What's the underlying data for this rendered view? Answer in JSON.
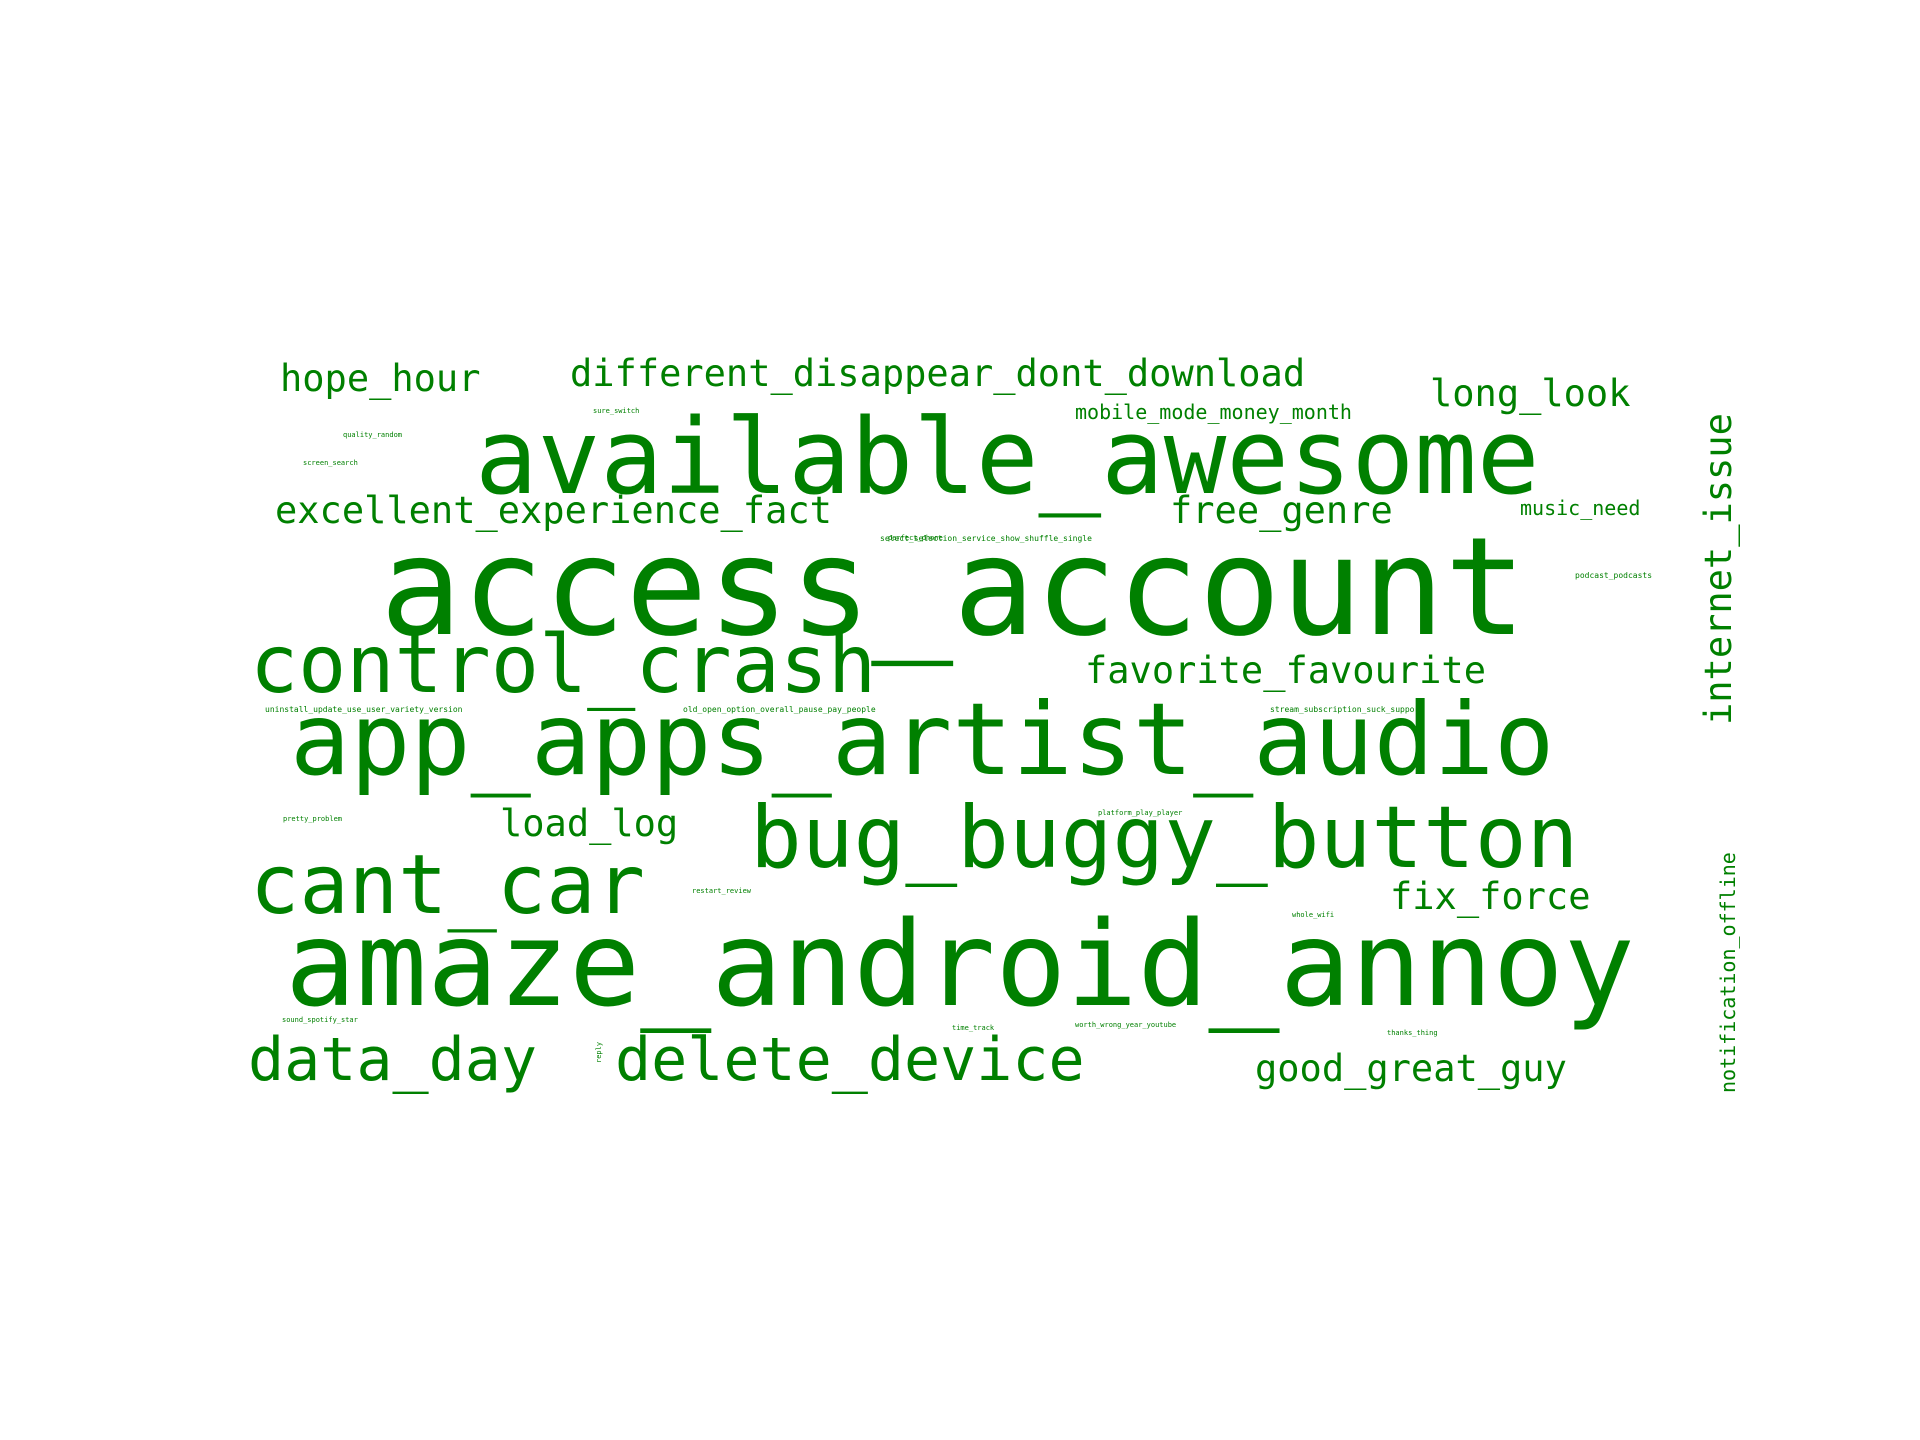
{
  "color": "#008000",
  "words": [
    "access_account",
    "available_awesome",
    "app_apps_artist_audio",
    "amaze_android_annoy",
    "bug_buggy_button",
    "control_crash",
    "cant_car",
    "data_day",
    "delete_device",
    "different_disappear_dont_download",
    "long_look",
    "hope_hour",
    "excellent_experience_fact",
    "free_genre",
    "favorite_favourite",
    "load_log",
    "fix_force",
    "good_great_guy",
    "mobile_mode_money_month",
    "music_need",
    "internet_issue",
    "notification_offline",
    "select_selection_service_show_shuffle_single",
    "uninstall_update_use_user_variety_version",
    "old_open_option_overall_pause_pay_people",
    "stream_subscription_suck_support",
    "podcast_podcasts",
    "perfect_phone",
    "quality_random",
    "screen_search",
    "sure_switch",
    "pretty_problem",
    "platform_play_player",
    "restart_review",
    "whole_wifi",
    "sound_spotify_star",
    "time_track",
    "worth_wrong_year_youtube",
    "thanks_thing",
    "reply"
  ]
}
